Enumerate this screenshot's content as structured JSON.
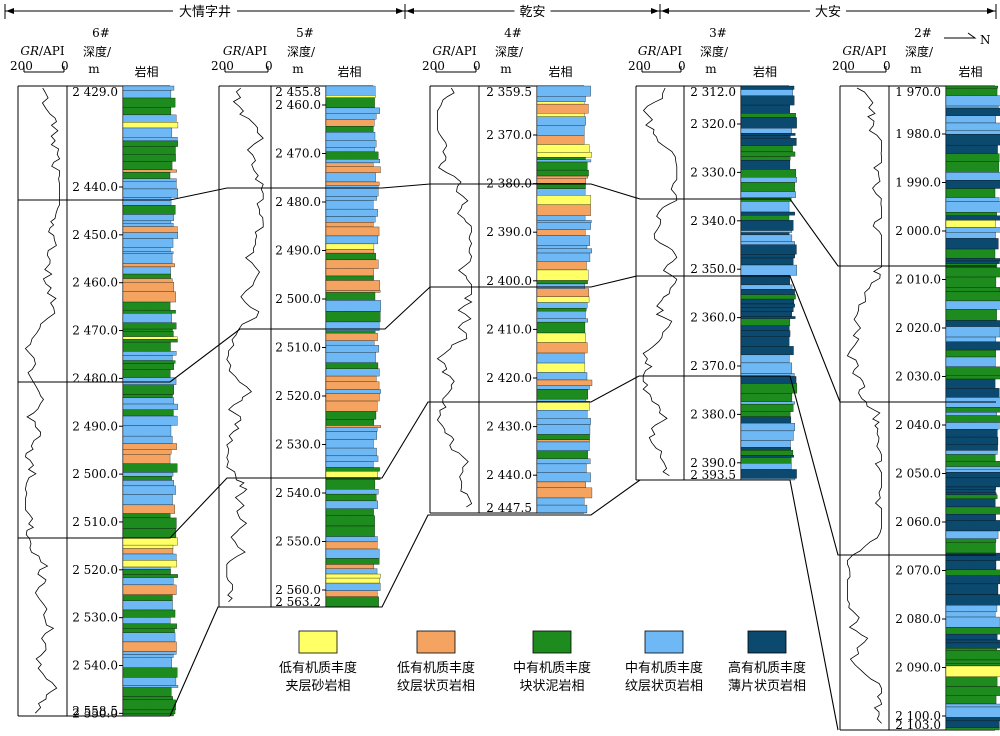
{
  "top_groups": [
    {
      "label": "大情字井"
    },
    {
      "label": "乾安"
    },
    {
      "label": "大安"
    }
  ],
  "north_label": "N",
  "gr_axis": {
    "label": "GR/API",
    "max": "200",
    "min": "0"
  },
  "depth_header": {
    "line1": "深度/",
    "line2": "m"
  },
  "facies_header": "岩相",
  "wells": [
    {
      "name": "6#",
      "depth_top": "2 429.0",
      "depth_bottom": "2 558.5",
      "ticks": [
        "2 440.0",
        "2 450.0",
        "2 460.0",
        "2 470.0",
        "2 480.0",
        "2 490.0",
        "2 500.0",
        "2 510.0",
        "2 520.0",
        "2 530.0",
        "2 540.0",
        "2 550.0"
      ]
    },
    {
      "name": "5#",
      "depth_top": "2 455.8",
      "depth_bottom": "2 563.2",
      "ticks": [
        "2 460.0",
        "2 470.0",
        "2 480.0",
        "2 490.0",
        "2 500.0",
        "2 510.0",
        "2 520.0",
        "2 530.0",
        "2 540.0",
        "2 550.0",
        "2 560.0"
      ]
    },
    {
      "name": "4#",
      "depth_top": "2 359.5",
      "depth_bottom": "2 447.5",
      "ticks": [
        "2 370.0",
        "2 380.0",
        "2 390.0",
        "2 400.0",
        "2 410.0",
        "2 420.0",
        "2 430.0",
        "2 440.0"
      ]
    },
    {
      "name": "3#",
      "depth_top": "2 312.0",
      "depth_bottom": "2 393.5",
      "ticks": [
        "2 320.0",
        "2 330.0",
        "2 340.0",
        "2 350.0",
        "2 360.0",
        "2 370.0",
        "2 380.0",
        "2 390.0"
      ]
    },
    {
      "name": "2#",
      "depth_top": "1 970.0",
      "depth_bottom": "2 103.0",
      "ticks": [
        "1 980.0",
        "1 990.0",
        "2 000.0",
        "2 010.0",
        "2 020.0",
        "2 030.0",
        "2 040.0",
        "2 050.0",
        "2 060.0",
        "2 070.0",
        "2 080.0",
        "2 090.0",
        "2 100.0"
      ]
    }
  ],
  "legend": [
    {
      "line1": "低有机质丰度",
      "line2": "夹层砂岩相",
      "color": "#FFFF66"
    },
    {
      "line1": "低有机质丰度",
      "line2": "纹层状页岩相",
      "color": "#F4A460"
    },
    {
      "line1": "中有机质丰度",
      "line2": "块状泥岩相",
      "color": "#1E8B1E"
    },
    {
      "line1": "中有机质丰度",
      "line2": "纹层状页岩相",
      "color": "#6EB9F5"
    },
    {
      "line1": "高有机质丰度",
      "line2": "薄片状页岩相",
      "color": "#0B4A6E"
    }
  ]
}
